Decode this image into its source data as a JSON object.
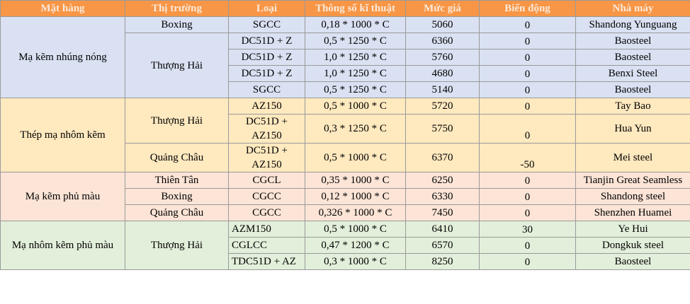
{
  "header": [
    "Mặt hàng",
    "Thị trường",
    "Loại",
    "Thông số kĩ thuật",
    "Mức giá",
    "Biến động",
    "Nhà máy"
  ],
  "groups": [
    {
      "name": "Mạ kẽm nhúng nóng",
      "markets": [
        {
          "name": "Boxing",
          "rows": [
            [
              "SGCC",
              "0,18 * 1000 * C",
              5060,
              0,
              "Shandong Yunguang"
            ]
          ]
        },
        {
          "name": "Thượng Hải",
          "rows": [
            [
              "DC51D + Z",
              "0,5 * 1250 * C",
              6360,
              0,
              "Baosteel"
            ],
            [
              "DC51D + Z",
              "1,0 * 1250 * C",
              5760,
              0,
              "Baosteel"
            ],
            [
              "DC51D + Z",
              "1,0 * 1250 * C",
              4680,
              0,
              "Benxi Steel"
            ],
            [
              "SGCC",
              "0,5 * 1250 * C",
              5140,
              0,
              "Baosteel"
            ]
          ]
        }
      ]
    },
    {
      "name": "Thép mạ nhôm kẽm",
      "markets": [
        {
          "name": "Thượng Hải",
          "rows": [
            [
              "AZ150",
              "0,5 * 1000 * C",
              5720,
              0,
              "Tay Bao"
            ],
            [
              "DC51D + AZ150",
              "0,3 * 1250 * C",
              5750,
              0,
              "Hua Yun"
            ]
          ]
        },
        {
          "name": "Quảng Châu",
          "rows": [
            [
              "DC51D + AZ150",
              "0,5 * 1000 * C",
              6370,
              -50,
              "Mei steel"
            ]
          ]
        }
      ]
    },
    {
      "name": "Mạ kẽm phủ màu",
      "markets": [
        {
          "name": "Thiên Tân",
          "rows": [
            [
              "CGCL",
              "0,35 * 1000 * C",
              6250,
              0,
              "Tianjin Great Seamless"
            ]
          ]
        },
        {
          "name": "Boxing",
          "rows": [
            [
              "CGCC",
              "0,12 * 1000 * C",
              6330,
              0,
              "Shandong steel"
            ]
          ]
        },
        {
          "name": "Quảng Châu",
          "rows": [
            [
              "CGCC",
              "0,326 * 1000 * C",
              7450,
              0,
              "Shenzhen Huamei"
            ]
          ]
        }
      ]
    },
    {
      "name": "Mạ nhôm kẽm phủ màu",
      "markets": [
        {
          "name": "Thượng Hải",
          "rows": [
            [
              "AZM150",
              "0,5 * 1000 * C",
              6410,
              30,
              "Ye Hui"
            ],
            [
              "CGLCC",
              "0,47 * 1200 * C",
              6570,
              0,
              "Dongkuk steel"
            ],
            [
              "TDC51D + AZ",
              "0,3 * 1000 * C",
              8250,
              0,
              "Baosteel"
            ]
          ]
        }
      ]
    }
  ]
}
